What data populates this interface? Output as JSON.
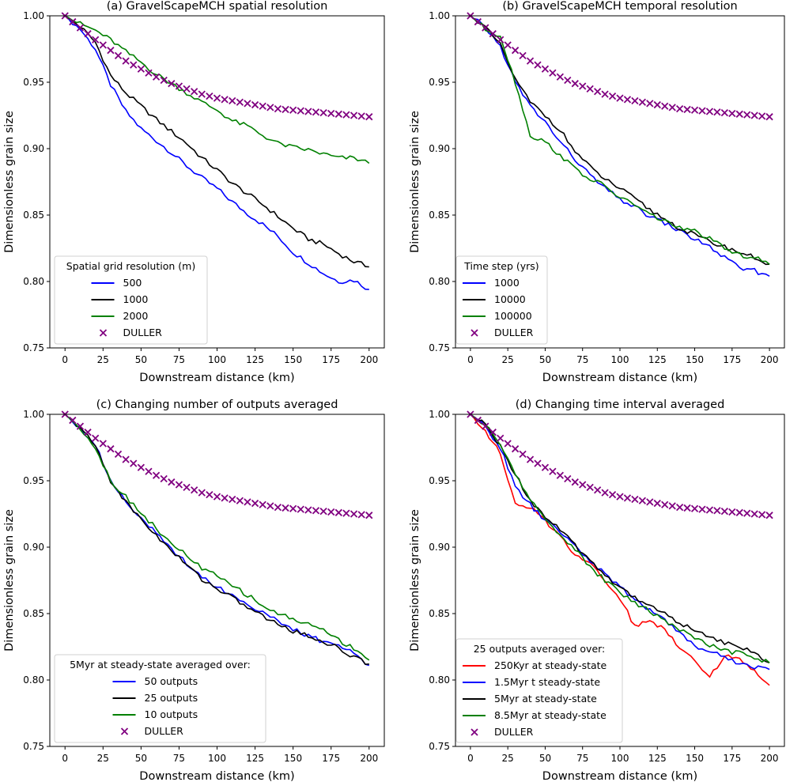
{
  "chart_data": [
    {
      "type": "line",
      "title": "(a) GravelScapeMCH spatial resolution",
      "xlabel": "Downstream distance (km)",
      "ylabel": "Dimensionless grain size",
      "xlim": [
        -10,
        210
      ],
      "ylim": [
        0.75,
        1.0
      ],
      "xticks": [
        "0",
        "25",
        "50",
        "75",
        "100",
        "125",
        "150",
        "175",
        "200"
      ],
      "yticks": [
        "0.75",
        "0.80",
        "0.85",
        "0.90",
        "0.95",
        "1.00"
      ],
      "legend": {
        "title": "Spatial grid resolution (m)",
        "placement": "lower-left"
      },
      "x": [
        0,
        10,
        20,
        30,
        40,
        50,
        60,
        70,
        80,
        90,
        100,
        110,
        120,
        130,
        140,
        150,
        160,
        170,
        180,
        190,
        200
      ],
      "series": [
        {
          "name": "500",
          "color": "#0000ff",
          "kind": "line",
          "values": [
            1.0,
            0.99,
            0.975,
            0.948,
            0.928,
            0.915,
            0.906,
            0.897,
            0.887,
            0.878,
            0.87,
            0.86,
            0.851,
            0.843,
            0.834,
            0.822,
            0.814,
            0.806,
            0.8,
            0.801,
            0.794
          ]
        },
        {
          "name": "1000",
          "color": "#000000",
          "kind": "line",
          "values": [
            1.0,
            0.992,
            0.98,
            0.955,
            0.942,
            0.932,
            0.922,
            0.913,
            0.904,
            0.893,
            0.884,
            0.874,
            0.866,
            0.858,
            0.849,
            0.84,
            0.832,
            0.828,
            0.821,
            0.815,
            0.811
          ]
        },
        {
          "name": "2000",
          "color": "#008000",
          "kind": "line",
          "values": [
            1.0,
            0.994,
            0.989,
            0.982,
            0.973,
            0.965,
            0.956,
            0.949,
            0.942,
            0.935,
            0.929,
            0.921,
            0.917,
            0.91,
            0.904,
            0.901,
            0.899,
            0.896,
            0.893,
            0.893,
            0.889
          ]
        },
        {
          "name": "DULLER",
          "color": "#800080",
          "kind": "marker",
          "values": [
            1.0,
            0.991,
            0.982,
            0.974,
            0.966,
            0.96,
            0.954,
            0.949,
            0.945,
            0.941,
            0.938,
            0.936,
            0.934,
            0.932,
            0.93,
            0.929,
            0.928,
            0.927,
            0.926,
            0.925,
            0.924
          ]
        }
      ]
    },
    {
      "type": "line",
      "title": "(b) GravelScapeMCH temporal resolution",
      "xlabel": "Downstream distance (km)",
      "ylabel": "Dimensionless grain size",
      "xlim": [
        -10,
        210
      ],
      "ylim": [
        0.75,
        1.0
      ],
      "xticks": [
        "0",
        "25",
        "50",
        "75",
        "100",
        "125",
        "150",
        "175",
        "200"
      ],
      "yticks": [
        "0.75",
        "0.80",
        "0.85",
        "0.90",
        "0.95",
        "1.00"
      ],
      "legend": {
        "title": "Time step (yrs)",
        "placement": "lower-left"
      },
      "x": [
        0,
        10,
        20,
        30,
        40,
        50,
        60,
        70,
        80,
        90,
        100,
        110,
        120,
        130,
        140,
        150,
        160,
        170,
        180,
        190,
        200
      ],
      "series": [
        {
          "name": "1000",
          "color": "#0000ff",
          "kind": "line",
          "values": [
            1.0,
            0.991,
            0.977,
            0.95,
            0.932,
            0.92,
            0.905,
            0.892,
            0.88,
            0.87,
            0.862,
            0.856,
            0.849,
            0.844,
            0.838,
            0.832,
            0.826,
            0.818,
            0.81,
            0.808,
            0.804
          ]
        },
        {
          "name": "10000",
          "color": "#000000",
          "kind": "line",
          "values": [
            1.0,
            0.991,
            0.978,
            0.952,
            0.935,
            0.925,
            0.914,
            0.898,
            0.886,
            0.877,
            0.87,
            0.862,
            0.854,
            0.847,
            0.84,
            0.835,
            0.83,
            0.826,
            0.822,
            0.818,
            0.813
          ]
        },
        {
          "name": "100000",
          "color": "#008000",
          "kind": "line",
          "values": [
            1.0,
            0.99,
            0.985,
            0.95,
            0.91,
            0.905,
            0.895,
            0.885,
            0.877,
            0.872,
            0.863,
            0.858,
            0.85,
            0.846,
            0.84,
            0.838,
            0.832,
            0.825,
            0.82,
            0.818,
            0.813
          ]
        },
        {
          "name": "DULLER",
          "color": "#800080",
          "kind": "marker",
          "values": [
            1.0,
            0.991,
            0.982,
            0.974,
            0.966,
            0.96,
            0.954,
            0.949,
            0.945,
            0.941,
            0.938,
            0.936,
            0.934,
            0.932,
            0.93,
            0.929,
            0.928,
            0.927,
            0.926,
            0.925,
            0.924
          ]
        }
      ]
    },
    {
      "type": "line",
      "title": "(c) Changing number of outputs averaged",
      "xlabel": "Downstream distance (km)",
      "ylabel": "Dimensionless grain size",
      "xlim": [
        -10,
        210
      ],
      "ylim": [
        0.75,
        1.0
      ],
      "xticks": [
        "0",
        "25",
        "50",
        "75",
        "100",
        "125",
        "150",
        "175",
        "200"
      ],
      "yticks": [
        "0.75",
        "0.80",
        "0.85",
        "0.90",
        "0.95",
        "1.00"
      ],
      "legend": {
        "title": "5Myr at steady-state averaged over:",
        "placement": "lower-left"
      },
      "x": [
        0,
        10,
        20,
        30,
        40,
        50,
        60,
        70,
        80,
        90,
        100,
        110,
        120,
        130,
        140,
        150,
        160,
        170,
        180,
        190,
        200
      ],
      "series": [
        {
          "name": "50 outputs",
          "color": "#0000ff",
          "kind": "line",
          "values": [
            1.0,
            0.99,
            0.977,
            0.95,
            0.935,
            0.922,
            0.91,
            0.898,
            0.888,
            0.878,
            0.87,
            0.864,
            0.857,
            0.851,
            0.844,
            0.838,
            0.833,
            0.829,
            0.826,
            0.82,
            0.811
          ]
        },
        {
          "name": "25 outputs",
          "color": "#000000",
          "kind": "line",
          "values": [
            1.0,
            0.99,
            0.976,
            0.95,
            0.934,
            0.921,
            0.909,
            0.897,
            0.887,
            0.876,
            0.869,
            0.862,
            0.855,
            0.848,
            0.842,
            0.837,
            0.833,
            0.829,
            0.824,
            0.817,
            0.812
          ]
        },
        {
          "name": "10 outputs",
          "color": "#008000",
          "kind": "line",
          "values": [
            1.0,
            0.99,
            0.975,
            0.95,
            0.938,
            0.926,
            0.914,
            0.902,
            0.894,
            0.884,
            0.878,
            0.871,
            0.864,
            0.856,
            0.85,
            0.846,
            0.842,
            0.838,
            0.83,
            0.824,
            0.815
          ]
        },
        {
          "name": "DULLER",
          "color": "#800080",
          "kind": "marker",
          "values": [
            1.0,
            0.991,
            0.982,
            0.974,
            0.966,
            0.96,
            0.954,
            0.949,
            0.945,
            0.941,
            0.938,
            0.936,
            0.934,
            0.932,
            0.93,
            0.929,
            0.928,
            0.927,
            0.926,
            0.925,
            0.924
          ]
        }
      ]
    },
    {
      "type": "line",
      "title": "(d) Changing time interval averaged",
      "xlabel": "Downstream distance (km)",
      "ylabel": "Dimensionless grain size",
      "xlim": [
        -10,
        210
      ],
      "ylim": [
        0.75,
        1.0
      ],
      "xticks": [
        "0",
        "25",
        "50",
        "75",
        "100",
        "125",
        "150",
        "175",
        "200"
      ],
      "yticks": [
        "0.75",
        "0.80",
        "0.85",
        "0.90",
        "0.95",
        "1.00"
      ],
      "legend": {
        "title": "25 outputs averaged over:",
        "placement": "lower-left"
      },
      "x": [
        0,
        10,
        20,
        30,
        40,
        50,
        60,
        70,
        80,
        90,
        100,
        110,
        120,
        130,
        140,
        150,
        160,
        170,
        180,
        190,
        200
      ],
      "series": [
        {
          "name": "250Kyr at steady-state",
          "color": "#ff0000",
          "kind": "line",
          "values": [
            1.0,
            0.988,
            0.97,
            0.932,
            0.93,
            0.92,
            0.908,
            0.895,
            0.888,
            0.875,
            0.862,
            0.84,
            0.845,
            0.838,
            0.825,
            0.815,
            0.803,
            0.818,
            0.815,
            0.808,
            0.796
          ]
        },
        {
          "name": "1.5Myr t steady-state",
          "color": "#0000ff",
          "kind": "line",
          "values": [
            1.0,
            0.991,
            0.975,
            0.945,
            0.932,
            0.92,
            0.912,
            0.9,
            0.89,
            0.88,
            0.87,
            0.86,
            0.853,
            0.846,
            0.835,
            0.826,
            0.821,
            0.818,
            0.812,
            0.81,
            0.808
          ]
        },
        {
          "name": "5Myr at steady-state",
          "color": "#000000",
          "kind": "line",
          "values": [
            1.0,
            0.992,
            0.976,
            0.955,
            0.935,
            0.923,
            0.913,
            0.901,
            0.89,
            0.879,
            0.87,
            0.862,
            0.856,
            0.85,
            0.843,
            0.837,
            0.832,
            0.828,
            0.826,
            0.82,
            0.813
          ]
        },
        {
          "name": "8.5Myr at steady-state",
          "color": "#008000",
          "kind": "line",
          "values": [
            1.0,
            0.992,
            0.977,
            0.955,
            0.936,
            0.921,
            0.91,
            0.898,
            0.885,
            0.875,
            0.866,
            0.858,
            0.852,
            0.845,
            0.838,
            0.832,
            0.826,
            0.822,
            0.82,
            0.816,
            0.813
          ]
        },
        {
          "name": "DULLER",
          "color": "#800080",
          "kind": "marker",
          "values": [
            1.0,
            0.991,
            0.982,
            0.974,
            0.966,
            0.96,
            0.954,
            0.949,
            0.945,
            0.941,
            0.938,
            0.936,
            0.934,
            0.932,
            0.93,
            0.929,
            0.928,
            0.927,
            0.926,
            0.925,
            0.924
          ]
        }
      ]
    }
  ]
}
